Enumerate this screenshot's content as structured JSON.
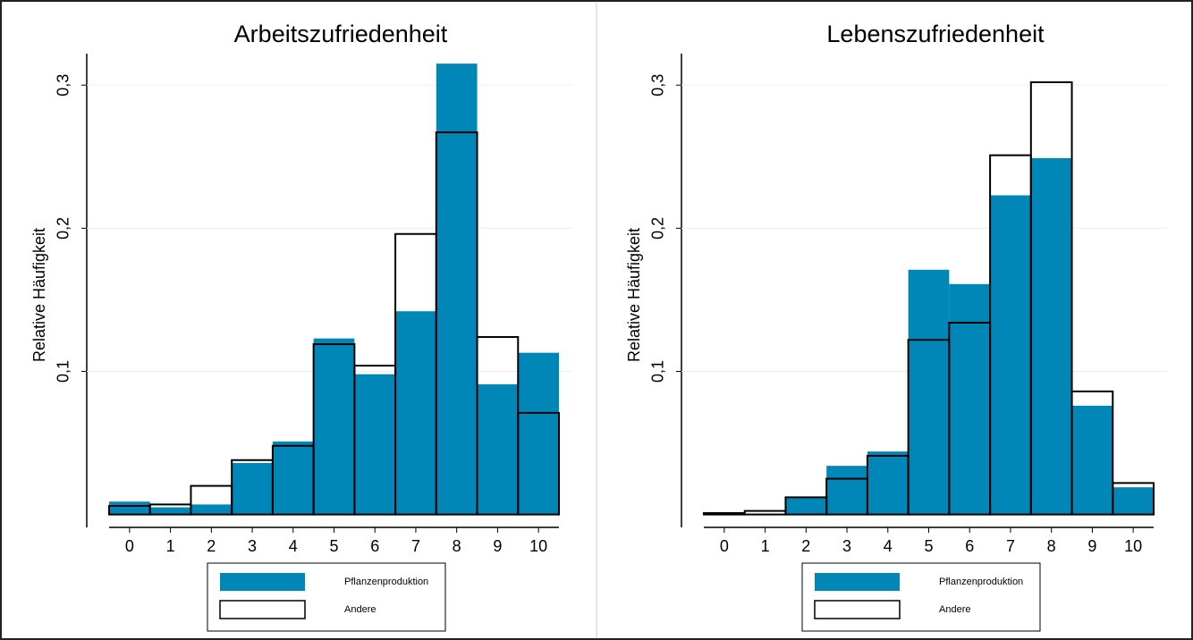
{
  "chart_data": [
    {
      "type": "bar",
      "title": "Arbeitszufriedenheit",
      "y_label": "Relative Häufigkeit",
      "categories": [
        "0",
        "1",
        "2",
        "3",
        "4",
        "5",
        "6",
        "7",
        "8",
        "9",
        "10"
      ],
      "series": [
        {
          "name": "Pflanzenproduktion",
          "color": "#0087b8",
          "values": [
            0.009,
            0.005,
            0.007,
            0.036,
            0.051,
            0.123,
            0.098,
            0.142,
            0.315,
            0.091,
            0.113
          ]
        },
        {
          "name": "Andere",
          "color": "#000000",
          "values": [
            0.006,
            0.007,
            0.02,
            0.038,
            0.048,
            0.119,
            0.104,
            0.196,
            0.267,
            0.124,
            0.071
          ]
        }
      ],
      "ylim": [
        -0.009,
        0.322
      ],
      "yticks": [
        {
          "value": 0.1,
          "label": "0,1"
        },
        {
          "value": 0.2,
          "label": "0,2"
        },
        {
          "value": 0.3,
          "label": "0,3"
        }
      ],
      "grid": true
    },
    {
      "type": "bar",
      "title": "Lebenszufriedenheit",
      "y_label": "Relative Häufigkeit",
      "categories": [
        "0",
        "1",
        "2",
        "3",
        "4",
        "5",
        "6",
        "7",
        "8",
        "9",
        "10"
      ],
      "series": [
        {
          "name": "Pflanzenproduktion",
          "color": "#0087b8",
          "values": [
            0.001,
            0.0006,
            0.012,
            0.034,
            0.044,
            0.171,
            0.161,
            0.223,
            0.249,
            0.076,
            0.019
          ]
        },
        {
          "name": "Andere",
          "color": "#000000",
          "values": [
            0.001,
            0.0025,
            0.012,
            0.025,
            0.041,
            0.122,
            0.134,
            0.251,
            0.302,
            0.086,
            0.022
          ]
        }
      ],
      "ylim": [
        -0.009,
        0.322
      ],
      "yticks": [
        {
          "value": 0.1,
          "label": "0,1"
        },
        {
          "value": 0.2,
          "label": "0,2"
        },
        {
          "value": 0.3,
          "label": "0,3"
        }
      ],
      "grid": true
    }
  ]
}
